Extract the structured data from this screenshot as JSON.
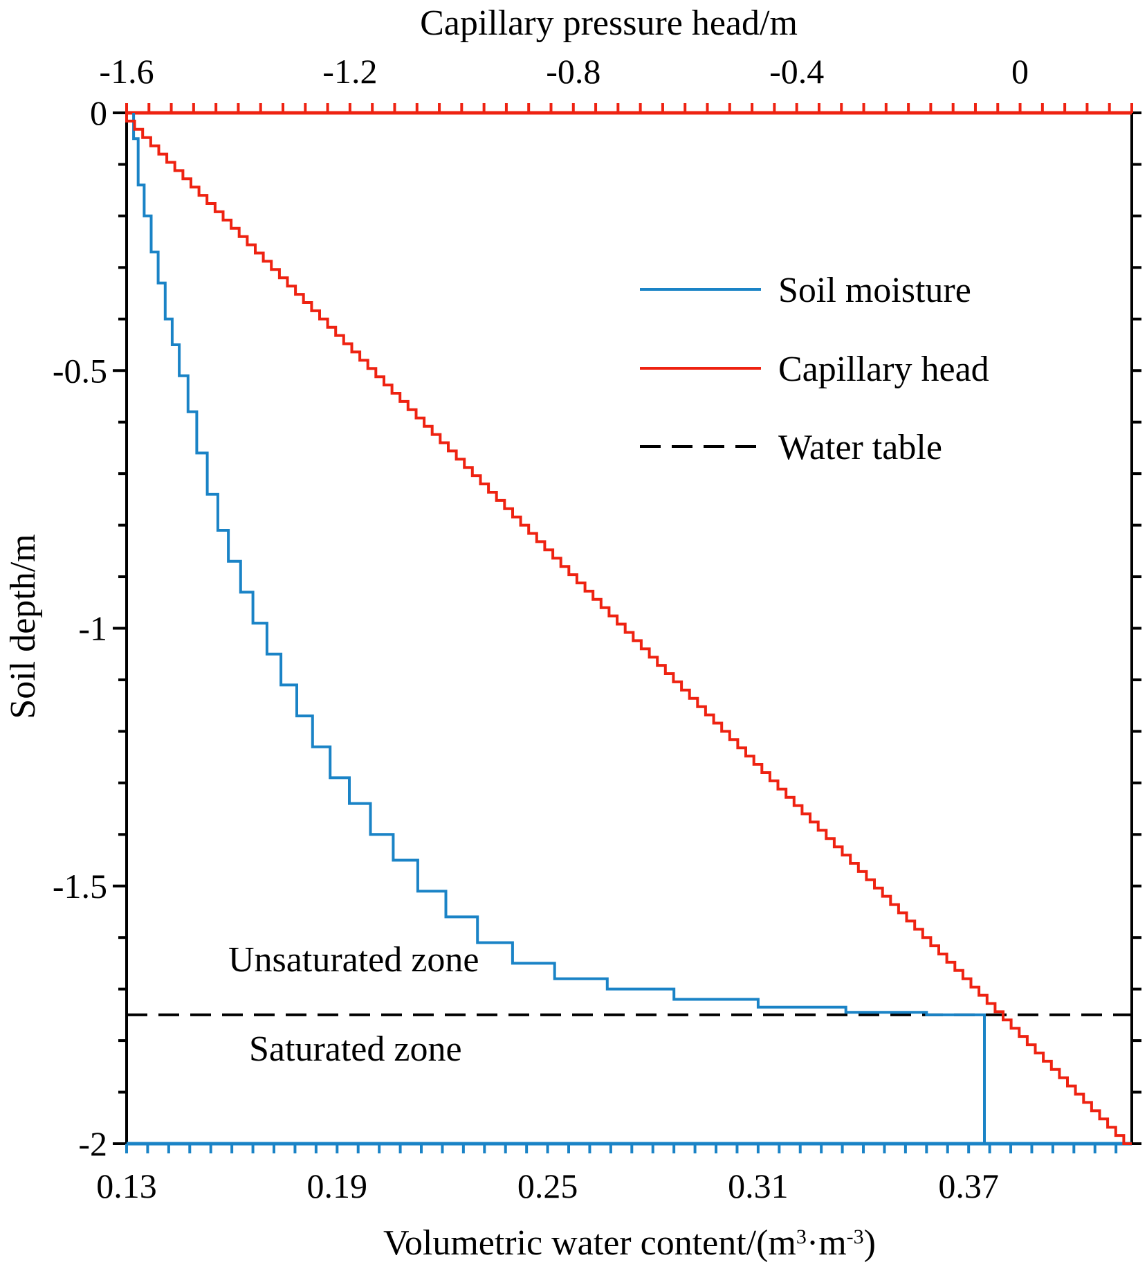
{
  "chart_data": {
    "type": "line",
    "title": "",
    "top_axis": {
      "label": "Capillary pressure head/m",
      "range": [
        -1.6,
        0.2
      ],
      "ticks": [
        -1.6,
        -1.2,
        -0.8,
        -0.4,
        0
      ],
      "tick_labels": [
        "-1.6",
        "-1.2",
        "-0.8",
        "-0.4",
        "0"
      ],
      "minor_step": 0.04
    },
    "bottom_axis": {
      "label_main": "Volumetric water content/(m",
      "label_sup1": "3",
      "label_mid": "·m",
      "label_sup2": "-3",
      "label_end": ")",
      "range": [
        0.13,
        0.4165
      ],
      "ticks": [
        0.13,
        0.19,
        0.25,
        0.31,
        0.37
      ],
      "tick_labels": [
        "0.13",
        "0.19",
        "0.25",
        "0.31",
        "0.37"
      ],
      "minor_step": 0.006
    },
    "left_axis": {
      "label": "Soil depth/m",
      "range": [
        -2,
        0
      ],
      "ticks": [
        0,
        -0.5,
        -1,
        -1.5,
        -2
      ],
      "tick_labels": [
        "0",
        "-0.5",
        "-1",
        "-1.5",
        "-2"
      ],
      "minor_step": 0.1
    },
    "series": [
      {
        "name": "Soil moisture",
        "color": "#1a83c6",
        "axis": "bottom",
        "stepped": true,
        "points": [
          [
            0.132,
            0.0
          ],
          [
            0.1333,
            -0.05
          ],
          [
            0.135,
            -0.14
          ],
          [
            0.137,
            -0.2
          ],
          [
            0.139,
            -0.27
          ],
          [
            0.141,
            -0.33
          ],
          [
            0.143,
            -0.4
          ],
          [
            0.145,
            -0.45
          ],
          [
            0.1475,
            -0.51
          ],
          [
            0.15,
            -0.58
          ],
          [
            0.153,
            -0.66
          ],
          [
            0.156,
            -0.74
          ],
          [
            0.159,
            -0.81
          ],
          [
            0.1625,
            -0.87
          ],
          [
            0.166,
            -0.93
          ],
          [
            0.17,
            -0.99
          ],
          [
            0.174,
            -1.05
          ],
          [
            0.1785,
            -1.11
          ],
          [
            0.183,
            -1.17
          ],
          [
            0.188,
            -1.23
          ],
          [
            0.1935,
            -1.29
          ],
          [
            0.1995,
            -1.34
          ],
          [
            0.206,
            -1.4
          ],
          [
            0.213,
            -1.45
          ],
          [
            0.221,
            -1.51
          ],
          [
            0.23,
            -1.56
          ],
          [
            0.24,
            -1.61
          ],
          [
            0.252,
            -1.65
          ],
          [
            0.267,
            -1.68
          ],
          [
            0.286,
            -1.7
          ],
          [
            0.31,
            -1.72
          ],
          [
            0.335,
            -1.735
          ],
          [
            0.358,
            -1.745
          ],
          [
            0.3745,
            -1.75
          ],
          [
            0.3745,
            -2.0
          ]
        ]
      },
      {
        "name": "Capillary head",
        "color": "#ee2211",
        "axis": "top",
        "stepped": true,
        "points": [
          [
            -1.6,
            0
          ],
          [
            0.2,
            -2
          ]
        ]
      }
    ],
    "water_table": {
      "name": "Water table",
      "depth": -1.75,
      "color": "#000000",
      "dashed": true
    },
    "annotations": [
      "Unsaturated zone",
      "Saturated zone"
    ],
    "legend": {
      "position": "top-right",
      "entries": [
        "Soil moisture",
        "Capillary head",
        "Water table"
      ]
    }
  }
}
